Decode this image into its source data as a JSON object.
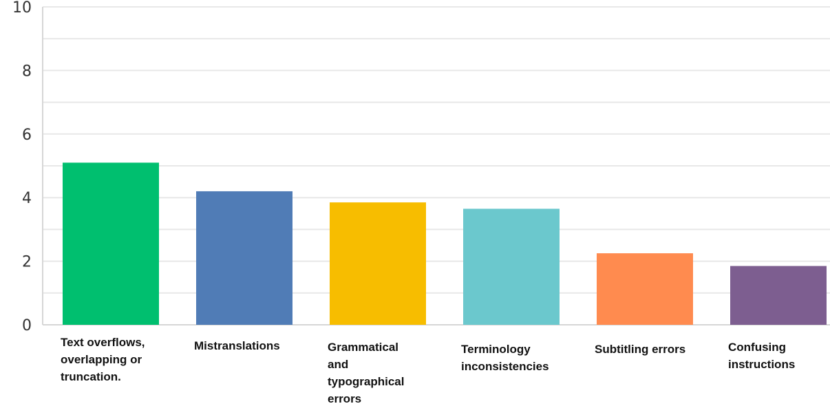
{
  "chart_data": {
    "type": "bar",
    "categories": [
      "Text overflows, overlapping or truncation.",
      "Mistranslations",
      "Grammatical and typographical errors",
      "Terminology inconsistencies",
      "Subtitling errors",
      "Confusing instructions"
    ],
    "category_label_lines": [
      [
        "Text overflows,",
        "overlapping or",
        "truncation."
      ],
      [
        "Mistranslations"
      ],
      [
        "Grammatical",
        "and",
        "typographical",
        "errors"
      ],
      [
        "Terminology",
        "inconsistencies"
      ],
      [
        "Subtitling errors"
      ],
      [
        "Confusing",
        "instructions"
      ]
    ],
    "values": [
      5.1,
      4.2,
      3.85,
      3.65,
      2.25,
      1.85
    ],
    "colors": [
      "#00bf6f",
      "#507cb6",
      "#f7bd00",
      "#6bc8cd",
      "#ff8b4f",
      "#7d5e90"
    ],
    "ylim": [
      0,
      10
    ],
    "yticks": [
      "0",
      "2",
      "4",
      "6",
      "8",
      "10"
    ],
    "grid": true,
    "legend": "none",
    "title": "",
    "xlabel": "",
    "ylabel": ""
  }
}
